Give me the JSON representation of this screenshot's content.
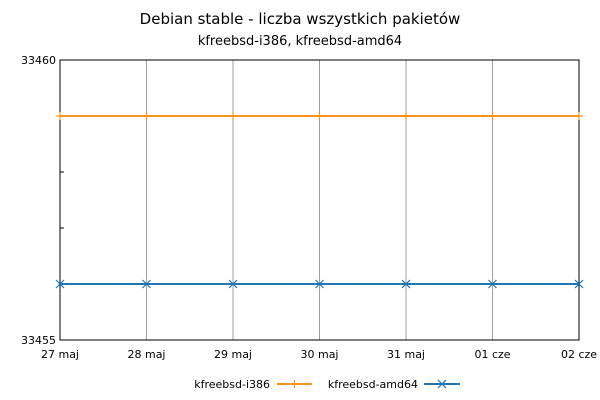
{
  "chart_data": {
    "type": "line",
    "title": "Debian stable - liczba wszystkich pakietów",
    "subtitle": "kfreebsd-i386, kfreebsd-amd64",
    "xlabel": "",
    "ylabel": "",
    "x": [
      "27 maj",
      "28 maj",
      "29 maj",
      "30 maj",
      "31 maj",
      "01 cze",
      "02 cze"
    ],
    "ylim": [
      33455,
      33460
    ],
    "y_tick_labels": [
      "33460",
      "33455"
    ],
    "grid": "vertical",
    "legend_position": "bottom",
    "series": [
      {
        "name": "kfreebsd-i386",
        "color": "#f7941d",
        "marker": "plus",
        "values": [
          33459,
          33459,
          33459,
          33459,
          33459,
          33459,
          33459
        ]
      },
      {
        "name": "kfreebsd-amd64",
        "color": "#1f77b4",
        "marker": "x",
        "values": [
          33456,
          33456,
          33456,
          33456,
          33456,
          33456,
          33456
        ]
      }
    ]
  }
}
